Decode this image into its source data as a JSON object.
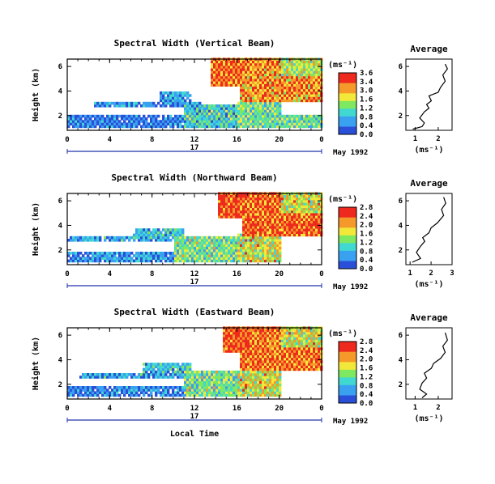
{
  "chart_data": [
    {
      "type": "heatmap",
      "title": "Spectral Width (Vertical Beam)",
      "ylabel": "Height (km)",
      "yticks": [
        "2",
        "4",
        "6"
      ],
      "ylim": [
        0.8,
        6.6
      ],
      "xticks": [
        "0",
        "4",
        "8",
        "12",
        "16",
        "20",
        "0"
      ],
      "xlim": [
        0,
        24
      ],
      "date_day": "17",
      "date_label": "May 1992",
      "colorbar": {
        "unit": "(ms⁻¹)",
        "ticks": [
          "3.6",
          "3.4",
          "3.0",
          "1.6",
          "1.2",
          "0.8",
          "0.4",
          "0.0"
        ],
        "range": [
          0.0,
          3.6
        ]
      },
      "average": {
        "title": "Average",
        "xlabel": "(ms⁻¹)",
        "xticks": [
          "1",
          "2"
        ],
        "yticks": [
          "2",
          "4",
          "6"
        ],
        "xlim": [
          0.6,
          2.6
        ],
        "profile": [
          [
            0.9,
            0.9
          ],
          [
            1.3,
            1.1
          ],
          [
            1.4,
            1.4
          ],
          [
            1.2,
            1.8
          ],
          [
            1.4,
            2.3
          ],
          [
            1.6,
            2.6
          ],
          [
            1.5,
            2.9
          ],
          [
            1.7,
            3.2
          ],
          [
            1.6,
            3.6
          ],
          [
            2.0,
            3.9
          ],
          [
            2.1,
            4.3
          ],
          [
            2.3,
            4.8
          ],
          [
            2.2,
            5.3
          ],
          [
            2.4,
            5.8
          ],
          [
            2.3,
            6.2
          ]
        ]
      },
      "regions": [
        {
          "t0": 0.0,
          "t1": 12.0,
          "z0": 1.0,
          "z1": 1.9,
          "v": 0.9
        },
        {
          "t0": 2.5,
          "t1": 12.5,
          "z0": 2.6,
          "z1": 3.1,
          "v": 1.1
        },
        {
          "t0": 8.5,
          "t1": 11.5,
          "z0": 2.9,
          "z1": 3.8,
          "v": 1.2
        },
        {
          "t0": 11.0,
          "t1": 16.0,
          "z0": 1.0,
          "z1": 2.9,
          "v": 1.6
        },
        {
          "t0": 16.0,
          "t1": 20.0,
          "z0": 1.0,
          "z1": 3.0,
          "v": 2.0
        },
        {
          "t0": 16.2,
          "t1": 24.0,
          "z0": 3.0,
          "z1": 6.6,
          "v": 3.2
        },
        {
          "t0": 20.0,
          "t1": 24.0,
          "z0": 5.2,
          "z1": 6.6,
          "v": 2.4
        },
        {
          "t0": 13.5,
          "t1": 16.5,
          "z0": 4.2,
          "z1": 6.6,
          "v": 3.4
        },
        {
          "t0": 19.5,
          "t1": 24.0,
          "z0": 1.0,
          "z1": 2.0,
          "v": 2.0
        }
      ]
    },
    {
      "type": "heatmap",
      "title": "Spectral Width (Northward Beam)",
      "ylabel": "Height (km)",
      "yticks": [
        "2",
        "4",
        "6"
      ],
      "ylim": [
        0.8,
        6.6
      ],
      "xticks": [
        "0",
        "4",
        "8",
        "12",
        "16",
        "20",
        "0"
      ],
      "xlim": [
        0,
        24
      ],
      "date_day": "17",
      "date_label": "May 1992",
      "colorbar": {
        "unit": "(ms⁻¹)",
        "ticks": [
          "2.8",
          "2.4",
          "2.0",
          "1.6",
          "1.2",
          "0.8",
          "0.4",
          "0.0"
        ],
        "range": [
          0.0,
          2.8
        ]
      },
      "average": {
        "title": "Average",
        "xlabel": "(ms⁻¹)",
        "xticks": [
          "1",
          "2",
          "3"
        ],
        "yticks": [
          "2",
          "4",
          "6"
        ],
        "xlim": [
          0.8,
          3.0
        ],
        "profile": [
          [
            1.1,
            1.0
          ],
          [
            1.5,
            1.3
          ],
          [
            1.3,
            1.8
          ],
          [
            1.5,
            2.3
          ],
          [
            1.7,
            2.7
          ],
          [
            1.6,
            3.0
          ],
          [
            1.9,
            3.4
          ],
          [
            2.0,
            3.8
          ],
          [
            2.3,
            4.2
          ],
          [
            2.6,
            4.8
          ],
          [
            2.5,
            5.3
          ],
          [
            2.7,
            5.8
          ],
          [
            2.6,
            6.3
          ]
        ]
      },
      "regions": [
        {
          "t0": 0.0,
          "t1": 12.5,
          "z0": 1.0,
          "z1": 1.7,
          "v": 0.9
        },
        {
          "t0": 0.0,
          "t1": 12.0,
          "z0": 2.5,
          "z1": 3.0,
          "v": 1.0
        },
        {
          "t0": 6.0,
          "t1": 11.0,
          "z0": 2.9,
          "z1": 3.7,
          "v": 1.2
        },
        {
          "t0": 10.0,
          "t1": 16.0,
          "z0": 1.0,
          "z1": 3.0,
          "v": 1.6
        },
        {
          "t0": 16.0,
          "t1": 20.0,
          "z0": 1.0,
          "z1": 3.2,
          "v": 2.0
        },
        {
          "t0": 16.5,
          "t1": 24.0,
          "z0": 3.0,
          "z1": 6.6,
          "v": 2.7
        },
        {
          "t0": 20.0,
          "t1": 24.0,
          "z0": 5.0,
          "z1": 6.6,
          "v": 2.0
        },
        {
          "t0": 14.0,
          "t1": 17.0,
          "z0": 4.4,
          "z1": 6.6,
          "v": 2.8
        }
      ]
    },
    {
      "type": "heatmap",
      "title": "Spectral Width (Eastward Beam)",
      "ylabel": "Height (km)",
      "yticks": [
        "2",
        "4",
        "6"
      ],
      "ylim": [
        0.8,
        6.6
      ],
      "xticks": [
        "0",
        "4",
        "8",
        "12",
        "16",
        "20",
        "0"
      ],
      "xlim": [
        0,
        24
      ],
      "date_day": "17",
      "date_label": "May 1992",
      "xlabel": "Local Time",
      "colorbar": {
        "unit": "(ms⁻¹)",
        "ticks": [
          "2.8",
          "2.4",
          "2.0",
          "1.6",
          "1.2",
          "0.8",
          "0.4",
          "0.0"
        ],
        "range": [
          0.0,
          2.8
        ]
      },
      "average": {
        "title": "Average",
        "xlabel": "(ms⁻¹)",
        "xticks": [
          "1",
          "2"
        ],
        "yticks": [
          "2",
          "4",
          "6"
        ],
        "xlim": [
          0.6,
          2.6
        ],
        "profile": [
          [
            1.3,
            0.9
          ],
          [
            1.5,
            1.2
          ],
          [
            1.2,
            1.6
          ],
          [
            1.3,
            2.1
          ],
          [
            1.5,
            2.5
          ],
          [
            1.4,
            2.9
          ],
          [
            1.7,
            3.3
          ],
          [
            1.8,
            3.7
          ],
          [
            2.1,
            4.1
          ],
          [
            2.3,
            4.6
          ],
          [
            2.2,
            5.1
          ],
          [
            2.4,
            5.6
          ],
          [
            2.3,
            6.2
          ]
        ]
      },
      "regions": [
        {
          "t0": 0.0,
          "t1": 12.0,
          "z0": 1.0,
          "z1": 1.8,
          "v": 0.8
        },
        {
          "t0": 1.0,
          "t1": 12.0,
          "z0": 2.3,
          "z1": 2.8,
          "v": 1.0
        },
        {
          "t0": 7.0,
          "t1": 11.5,
          "z0": 2.7,
          "z1": 3.6,
          "v": 1.2
        },
        {
          "t0": 11.0,
          "t1": 16.0,
          "z0": 1.0,
          "z1": 3.0,
          "v": 1.6
        },
        {
          "t0": 16.0,
          "t1": 20.0,
          "z0": 1.0,
          "z1": 3.0,
          "v": 2.0
        },
        {
          "t0": 16.2,
          "t1": 24.0,
          "z0": 3.0,
          "z1": 6.6,
          "v": 2.6
        },
        {
          "t0": 20.0,
          "t1": 24.0,
          "z0": 5.0,
          "z1": 6.6,
          "v": 2.0
        },
        {
          "t0": 14.5,
          "t1": 17.0,
          "z0": 4.4,
          "z1": 6.6,
          "v": 2.8
        }
      ]
    }
  ]
}
